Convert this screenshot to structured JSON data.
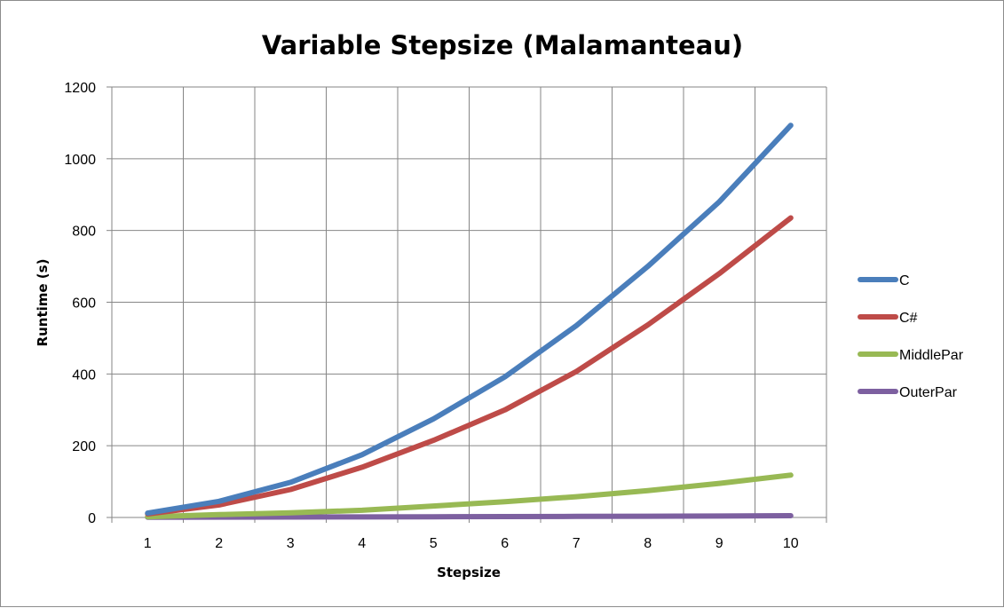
{
  "chart_data": {
    "type": "line",
    "title": "Variable Stepsize (Malamanteau)",
    "xlabel": "Stepsize",
    "ylabel": "Runtime (s)",
    "categories": [
      1,
      2,
      3,
      4,
      5,
      6,
      7,
      8,
      9,
      10
    ],
    "ylim": [
      0,
      1200
    ],
    "yticks": [
      0,
      200,
      400,
      600,
      800,
      1000,
      1200
    ],
    "grid": true,
    "legend_position": "right",
    "series": [
      {
        "name": "C",
        "color": "#4a7ebb",
        "values": [
          12,
          45,
          98,
          175,
          275,
          392,
          535,
          700,
          880,
          1093
        ]
      },
      {
        "name": "C#",
        "color": "#be4b48",
        "values": [
          10,
          35,
          78,
          140,
          215,
          300,
          407,
          537,
          680,
          835
        ]
      },
      {
        "name": "MiddlePar",
        "color": "#98b954",
        "values": [
          2,
          8,
          13,
          20,
          32,
          44,
          58,
          75,
          95,
          118
        ]
      },
      {
        "name": "OuterPar",
        "color": "#7d60a0",
        "values": [
          0.5,
          1,
          1.2,
          1.5,
          2,
          2.5,
          3,
          3.5,
          4,
          5
        ]
      }
    ]
  }
}
